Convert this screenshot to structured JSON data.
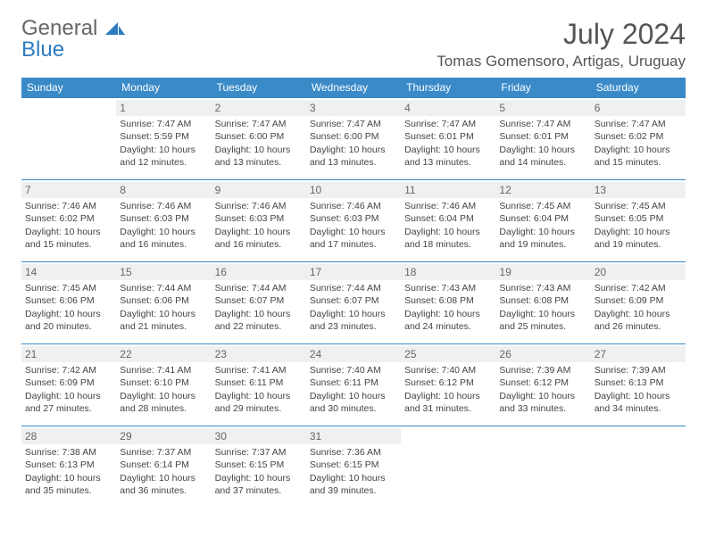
{
  "logo": {
    "line1": "General",
    "line2": "Blue"
  },
  "title": "July 2024",
  "location": "Tomas Gomensoro, Artigas, Uruguay",
  "colors": {
    "header_bg": "#3a8ac8",
    "header_text": "#ffffff",
    "daynum_bg": "#eef0f2",
    "border": "#3a8ac8",
    "logo_gray": "#666666",
    "logo_blue": "#2e7cc0"
  },
  "day_headers": [
    "Sunday",
    "Monday",
    "Tuesday",
    "Wednesday",
    "Thursday",
    "Friday",
    "Saturday"
  ],
  "weeks": [
    [
      null,
      {
        "n": "1",
        "sr": "7:47 AM",
        "ss": "5:59 PM",
        "dl": "10 hours and 12 minutes."
      },
      {
        "n": "2",
        "sr": "7:47 AM",
        "ss": "6:00 PM",
        "dl": "10 hours and 13 minutes."
      },
      {
        "n": "3",
        "sr": "7:47 AM",
        "ss": "6:00 PM",
        "dl": "10 hours and 13 minutes."
      },
      {
        "n": "4",
        "sr": "7:47 AM",
        "ss": "6:01 PM",
        "dl": "10 hours and 13 minutes."
      },
      {
        "n": "5",
        "sr": "7:47 AM",
        "ss": "6:01 PM",
        "dl": "10 hours and 14 minutes."
      },
      {
        "n": "6",
        "sr": "7:47 AM",
        "ss": "6:02 PM",
        "dl": "10 hours and 15 minutes."
      }
    ],
    [
      {
        "n": "7",
        "sr": "7:46 AM",
        "ss": "6:02 PM",
        "dl": "10 hours and 15 minutes."
      },
      {
        "n": "8",
        "sr": "7:46 AM",
        "ss": "6:03 PM",
        "dl": "10 hours and 16 minutes."
      },
      {
        "n": "9",
        "sr": "7:46 AM",
        "ss": "6:03 PM",
        "dl": "10 hours and 16 minutes."
      },
      {
        "n": "10",
        "sr": "7:46 AM",
        "ss": "6:03 PM",
        "dl": "10 hours and 17 minutes."
      },
      {
        "n": "11",
        "sr": "7:46 AM",
        "ss": "6:04 PM",
        "dl": "10 hours and 18 minutes."
      },
      {
        "n": "12",
        "sr": "7:45 AM",
        "ss": "6:04 PM",
        "dl": "10 hours and 19 minutes."
      },
      {
        "n": "13",
        "sr": "7:45 AM",
        "ss": "6:05 PM",
        "dl": "10 hours and 19 minutes."
      }
    ],
    [
      {
        "n": "14",
        "sr": "7:45 AM",
        "ss": "6:06 PM",
        "dl": "10 hours and 20 minutes."
      },
      {
        "n": "15",
        "sr": "7:44 AM",
        "ss": "6:06 PM",
        "dl": "10 hours and 21 minutes."
      },
      {
        "n": "16",
        "sr": "7:44 AM",
        "ss": "6:07 PM",
        "dl": "10 hours and 22 minutes."
      },
      {
        "n": "17",
        "sr": "7:44 AM",
        "ss": "6:07 PM",
        "dl": "10 hours and 23 minutes."
      },
      {
        "n": "18",
        "sr": "7:43 AM",
        "ss": "6:08 PM",
        "dl": "10 hours and 24 minutes."
      },
      {
        "n": "19",
        "sr": "7:43 AM",
        "ss": "6:08 PM",
        "dl": "10 hours and 25 minutes."
      },
      {
        "n": "20",
        "sr": "7:42 AM",
        "ss": "6:09 PM",
        "dl": "10 hours and 26 minutes."
      }
    ],
    [
      {
        "n": "21",
        "sr": "7:42 AM",
        "ss": "6:09 PM",
        "dl": "10 hours and 27 minutes."
      },
      {
        "n": "22",
        "sr": "7:41 AM",
        "ss": "6:10 PM",
        "dl": "10 hours and 28 minutes."
      },
      {
        "n": "23",
        "sr": "7:41 AM",
        "ss": "6:11 PM",
        "dl": "10 hours and 29 minutes."
      },
      {
        "n": "24",
        "sr": "7:40 AM",
        "ss": "6:11 PM",
        "dl": "10 hours and 30 minutes."
      },
      {
        "n": "25",
        "sr": "7:40 AM",
        "ss": "6:12 PM",
        "dl": "10 hours and 31 minutes."
      },
      {
        "n": "26",
        "sr": "7:39 AM",
        "ss": "6:12 PM",
        "dl": "10 hours and 33 minutes."
      },
      {
        "n": "27",
        "sr": "7:39 AM",
        "ss": "6:13 PM",
        "dl": "10 hours and 34 minutes."
      }
    ],
    [
      {
        "n": "28",
        "sr": "7:38 AM",
        "ss": "6:13 PM",
        "dl": "10 hours and 35 minutes."
      },
      {
        "n": "29",
        "sr": "7:37 AM",
        "ss": "6:14 PM",
        "dl": "10 hours and 36 minutes."
      },
      {
        "n": "30",
        "sr": "7:37 AM",
        "ss": "6:15 PM",
        "dl": "10 hours and 37 minutes."
      },
      {
        "n": "31",
        "sr": "7:36 AM",
        "ss": "6:15 PM",
        "dl": "10 hours and 39 minutes."
      },
      null,
      null,
      null
    ]
  ],
  "labels": {
    "sunrise": "Sunrise:",
    "sunset": "Sunset:",
    "daylight": "Daylight:"
  }
}
